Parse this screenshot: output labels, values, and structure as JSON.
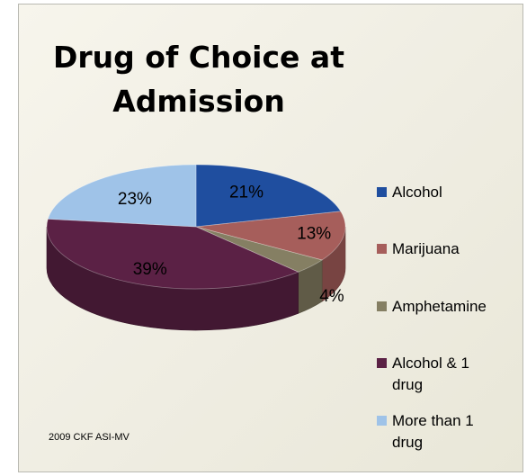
{
  "chart_data": {
    "type": "pie",
    "title": "Drug of Choice at Admission",
    "categories": [
      "Alcohol",
      "Marijuana",
      "Amphetamine",
      "Alcohol & 1 drug",
      "More than 1 drug"
    ],
    "values": [
      21,
      13,
      4,
      39,
      23
    ],
    "value_labels": [
      "21%",
      "13%",
      "4%",
      "39%",
      "23%"
    ],
    "colors": [
      "#1f4e9f",
      "#a65e5b",
      "#857f63",
      "#5b2145",
      "#9fc3e8"
    ],
    "legend_placement": "right",
    "style": "3d",
    "source_note": "2009 CKF ASI-MV"
  },
  "legend": [
    {
      "label": "Alcohol",
      "color": "#1f4e9f"
    },
    {
      "label": "Marijuana",
      "color": "#a65e5b"
    },
    {
      "label": "Amphetamine",
      "color": "#857f63"
    },
    {
      "label": "Alcohol & 1 drug",
      "color": "#5b2145"
    },
    {
      "label": "More than 1 drug",
      "color": "#9fc3e8"
    }
  ]
}
